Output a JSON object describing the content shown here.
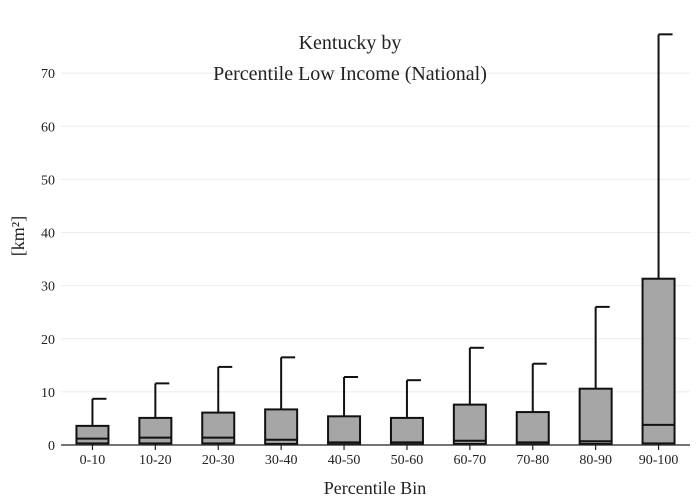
{
  "chart_data": {
    "type": "box",
    "title": [
      "Kentucky  by",
      "Percentile Low Income (National)"
    ],
    "xlabel": "Percentile Bin",
    "ylabel": "[km²]",
    "ylim": [
      0,
      80
    ],
    "yticks": [
      0,
      10,
      20,
      30,
      40,
      50,
      60,
      70
    ],
    "grid": true,
    "categories": [
      "0-10",
      "10-20",
      "20-30",
      "30-40",
      "40-50",
      "50-60",
      "60-70",
      "70-80",
      "80-90",
      "90-100"
    ],
    "boxes": [
      {
        "low": 0,
        "q1": 0.3,
        "median": 1.2,
        "q3": 3.6,
        "high": 8.7
      },
      {
        "low": 0,
        "q1": 0.3,
        "median": 1.4,
        "q3": 5.1,
        "high": 11.6
      },
      {
        "low": 0,
        "q1": 0.3,
        "median": 1.4,
        "q3": 6.1,
        "high": 14.7
      },
      {
        "low": 0,
        "q1": 0.2,
        "median": 1.0,
        "q3": 6.7,
        "high": 16.5
      },
      {
        "low": 0,
        "q1": 0.1,
        "median": 0.5,
        "q3": 5.4,
        "high": 12.8
      },
      {
        "low": 0,
        "q1": 0.1,
        "median": 0.5,
        "q3": 5.1,
        "high": 12.2
      },
      {
        "low": 0,
        "q1": 0.2,
        "median": 0.8,
        "q3": 7.6,
        "high": 18.3
      },
      {
        "low": 0,
        "q1": 0.1,
        "median": 0.5,
        "q3": 6.2,
        "high": 15.3
      },
      {
        "low": 0,
        "q1": 0.2,
        "median": 0.7,
        "q3": 10.6,
        "high": 26.0
      },
      {
        "low": 0,
        "q1": 0.3,
        "median": 3.8,
        "q3": 31.3,
        "high": 77.3
      }
    ]
  }
}
